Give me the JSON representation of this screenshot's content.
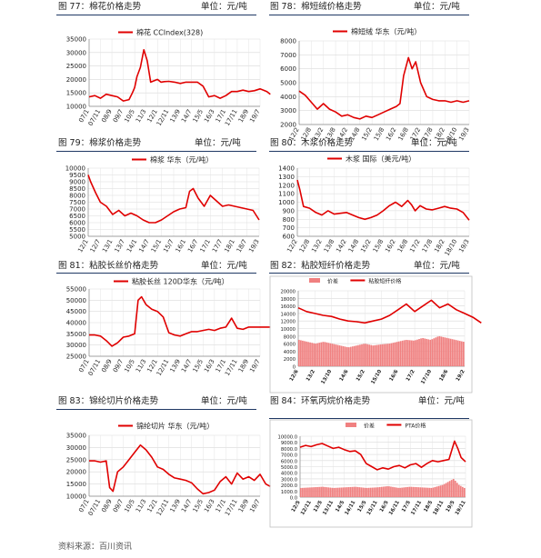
{
  "source_note": "资料来源：百川资讯",
  "colors": {
    "red": "#e00000",
    "bar": "#f08080",
    "rule": "#1f3864",
    "grid": "#d9d9d9"
  },
  "chart_data": [
    {
      "type": "line",
      "figure_title": "图 77：棉花价格走势",
      "unit": "单位：元/吨",
      "legend": [
        "棉花 CCIndex(328)"
      ],
      "ylim": [
        10000,
        35000
      ],
      "yticks": [
        "10000",
        "15000",
        "20000",
        "25000",
        "30000",
        "35000"
      ],
      "xticks": [
        "07/1",
        "07/11",
        "08/9",
        "09/7",
        "10/5",
        "11/3",
        "12/1",
        "12/11",
        "13/9",
        "14/7",
        "15/5",
        "16/3",
        "17/1",
        "17/11",
        "18/9",
        "19/7"
      ],
      "series": [
        {
          "name": "棉花 CCIndex(328)",
          "color": "#e00000",
          "x": [
            0,
            0.5,
            1,
            1.5,
            2,
            2.5,
            3,
            3.5,
            3.8,
            4,
            4.2,
            4.5,
            4.8,
            5.1,
            5.4,
            5.7,
            6,
            6.3,
            6.6,
            7,
            7.5,
            8,
            8.5,
            9,
            9.5,
            10,
            10.5,
            11,
            11.5,
            12,
            12.5,
            13,
            13.5,
            14,
            14.5,
            15,
            15.3,
            15.6,
            15.9
          ],
          "values": [
            13500,
            14000,
            13000,
            14500,
            14000,
            13500,
            12000,
            12500,
            15000,
            17000,
            21000,
            24500,
            31000,
            27000,
            19000,
            19500,
            20000,
            19000,
            19200,
            19300,
            19000,
            18500,
            19000,
            19000,
            19000,
            17500,
            13500,
            14000,
            13000,
            14000,
            15500,
            15500,
            16000,
            15500,
            15800,
            16500,
            16000,
            15500,
            14500
          ]
        }
      ]
    },
    {
      "type": "line",
      "figure_title": "图 78：棉短绒价格走势",
      "unit": "单位：元/吨",
      "legend": [
        "棉短绒 华东（元/吨）"
      ],
      "ylim": [
        2000,
        8000
      ],
      "yticks": [
        "2000",
        "3000",
        "4000",
        "5000",
        "6000",
        "7000",
        "8000"
      ],
      "xticks": [
        "12/2",
        "12/8",
        "13/2",
        "13/8",
        "14/2",
        "14/8",
        "15/2",
        "15/8",
        "16/2",
        "16/8",
        "17/2",
        "17/8",
        "18/2",
        "18/10",
        "19/3"
      ],
      "series": [
        {
          "name": "棉短绒 华东（元/吨）",
          "color": "#e00000",
          "x": [
            0,
            0.5,
            1,
            1.5,
            2,
            2.5,
            3,
            3.5,
            4,
            4.5,
            5,
            5.5,
            6,
            6.5,
            7,
            7.5,
            8,
            8.3,
            8.6,
            9,
            9.3,
            9.6,
            10,
            10.5,
            11,
            11.5,
            12,
            12.5,
            13,
            13.5,
            14
          ],
          "values": [
            4400,
            4100,
            3600,
            3100,
            3500,
            3100,
            2900,
            2600,
            2700,
            2500,
            2400,
            2600,
            2500,
            2700,
            2900,
            3100,
            3300,
            3500,
            5500,
            6800,
            6000,
            6500,
            5000,
            4000,
            3800,
            3700,
            3700,
            3600,
            3700,
            3600,
            3700
          ]
        }
      ]
    },
    {
      "type": "line",
      "figure_title": "图 79：棉浆价格走势",
      "unit": "单位：元/吨",
      "legend": [
        "棉浆 华东（元/吨）"
      ],
      "ylim": [
        5000,
        10000
      ],
      "yticks": [
        "5000",
        "5500",
        "6000",
        "6500",
        "7000",
        "7500",
        "8000",
        "8500",
        "9000",
        "9500",
        "10000"
      ],
      "xticks": [
        "12/1",
        "12/7",
        "13/1",
        "13/7",
        "14/1",
        "14/7",
        "15/1",
        "15/7",
        "16/1",
        "16/7",
        "17/1",
        "17/7",
        "18/1",
        "18/7",
        "19/3"
      ],
      "series": [
        {
          "name": "棉浆 华东（元/吨）",
          "color": "#e00000",
          "x": [
            0,
            0.2,
            0.6,
            1,
            1.5,
            2,
            2.5,
            3,
            3.5,
            4,
            4.5,
            5,
            5.5,
            6,
            6.5,
            7,
            7.5,
            8,
            8.3,
            8.6,
            9,
            9.5,
            10,
            10.5,
            11,
            11.5,
            12,
            12.5,
            13,
            13.5,
            14
          ],
          "values": [
            9500,
            9000,
            8200,
            7500,
            7200,
            6600,
            6900,
            6500,
            6700,
            6500,
            6200,
            6000,
            6000,
            6200,
            6500,
            6800,
            7000,
            7100,
            8300,
            8500,
            7800,
            7200,
            8000,
            7600,
            7200,
            7300,
            7200,
            7100,
            7000,
            6900,
            6200
          ]
        }
      ]
    },
    {
      "type": "line",
      "figure_title": "图 80：木浆价格走势",
      "unit": "单位：元/吨",
      "legend": [
        "木浆 国际（美元/吨）"
      ],
      "ylim": [
        600,
        1400
      ],
      "yticks": [
        "600",
        "700",
        "800",
        "900",
        "1000",
        "1100",
        "1200",
        "1300",
        "1400"
      ],
      "xticks": [
        "12/2",
        "12/8",
        "13/2",
        "13/8",
        "14/2",
        "14/8",
        "15/2",
        "15/8",
        "16/2",
        "16/8",
        "17/2",
        "17/8",
        "18/2",
        "18/10",
        "19/3"
      ],
      "series": [
        {
          "name": "木浆 国际（美元/吨）",
          "color": "#e00000",
          "x": [
            0,
            0.2,
            0.5,
            1,
            1.5,
            2,
            2.5,
            3,
            3.5,
            4,
            4.5,
            5,
            5.5,
            6,
            6.5,
            7,
            7.5,
            8,
            8.5,
            9,
            9.3,
            9.6,
            10,
            10.5,
            11,
            11.5,
            12,
            12.5,
            13,
            13.5,
            14
          ],
          "values": [
            1260,
            1150,
            950,
            930,
            880,
            850,
            900,
            860,
            870,
            880,
            850,
            820,
            800,
            820,
            850,
            900,
            960,
            1000,
            950,
            1020,
            970,
            900,
            960,
            920,
            910,
            930,
            950,
            930,
            920,
            880,
            790
          ]
        }
      ]
    },
    {
      "type": "line",
      "figure_title": "图 81：粘胶长丝价格走势",
      "unit": "单位：元/吨",
      "legend": [
        "粘胶长丝 120D华东（元/吨）"
      ],
      "ylim": [
        25000,
        55000
      ],
      "yticks": [
        "25000",
        "30000",
        "35000",
        "40000",
        "45000",
        "50000",
        "55000"
      ],
      "xticks": [
        "07/1",
        "07/11",
        "08/9",
        "09/7",
        "10/5",
        "11/3",
        "12/1",
        "12/11",
        "13/9",
        "14/7",
        "15/5",
        "16/3",
        "17/1",
        "17/11",
        "18/9",
        "19/7"
      ],
      "series": [
        {
          "name": "粘胶长丝 120D华东（元/吨）",
          "color": "#e00000",
          "x": [
            0,
            0.5,
            1,
            1.5,
            2,
            2.5,
            3,
            3.5,
            4,
            4.3,
            4.6,
            5,
            5.5,
            6,
            6.5,
            7,
            7.5,
            8,
            8.5,
            9,
            9.5,
            10,
            10.5,
            11,
            11.5,
            12,
            12.5,
            13,
            13.5,
            14,
            14.5,
            15,
            15.5,
            15.9
          ],
          "values": [
            34500,
            34500,
            34000,
            32000,
            29500,
            31000,
            33500,
            34000,
            35000,
            50000,
            51500,
            48000,
            46000,
            45000,
            42500,
            35500,
            34500,
            34000,
            35000,
            36000,
            36000,
            36500,
            37000,
            36500,
            37500,
            38000,
            42000,
            37500,
            37000,
            38000,
            38000,
            38000,
            38000,
            38000
          ]
        }
      ]
    },
    {
      "type": "bar",
      "figure_title": "图 82：粘胶短纤价格走势",
      "unit": "单位：元/吨",
      "legend": [
        "价差",
        "粘胶短纤价格"
      ],
      "ylim": [
        0,
        20000
      ],
      "yticks": [
        "0",
        "2000",
        "4000",
        "6000",
        "8000",
        "10000",
        "12000",
        "14000",
        "16000",
        "18000",
        "20000"
      ],
      "xticks": [
        "12/6",
        "13/2",
        "13/10",
        "14/6",
        "15/2",
        "15/10",
        "16/6",
        "17/2",
        "17/10",
        "18/6",
        "19/2"
      ],
      "series": [
        {
          "name": "价差",
          "color": "#f08080",
          "x": [
            0,
            0.5,
            1,
            1.5,
            2,
            2.5,
            3,
            3.5,
            4,
            4.5,
            5,
            5.5,
            6,
            6.5,
            7,
            7.5,
            8,
            8.5,
            9,
            9.5,
            10,
            10.5,
            11
          ],
          "values": [
            7000,
            6500,
            6000,
            6500,
            6000,
            5500,
            5000,
            5500,
            6000,
            5500,
            5800,
            6000,
            6500,
            7000,
            6800,
            7500,
            7000,
            8000,
            7500,
            7000,
            6500,
            6000,
            4800
          ]
        },
        {
          "name": "粘胶短纤价格",
          "color": "#e00000",
          "x": [
            0,
            0.5,
            1,
            1.5,
            2,
            2.5,
            3,
            3.5,
            4,
            4.5,
            5,
            5.5,
            6,
            6.5,
            7,
            7.5,
            8,
            8.5,
            9,
            9.5,
            10,
            10.5,
            11
          ],
          "values": [
            15500,
            14500,
            14000,
            13500,
            13200,
            12500,
            12000,
            11800,
            11500,
            12000,
            12500,
            13500,
            15000,
            16500,
            14500,
            16000,
            17500,
            15500,
            16500,
            15000,
            14000,
            13000,
            11500
          ]
        }
      ]
    },
    {
      "type": "line",
      "figure_title": "图 83：锦纶切片价格走势",
      "unit": "单位：元/吨",
      "legend": [
        "锦纶切片 华东（元/吨）"
      ],
      "ylim": [
        10000,
        35000
      ],
      "yticks": [
        "10000",
        "15000",
        "20000",
        "25000",
        "30000",
        "35000"
      ],
      "xticks": [
        "07/1",
        "07/11",
        "08/9",
        "09/7",
        "10/5",
        "11/3",
        "12/1",
        "12/11",
        "13/9",
        "14/7",
        "15/5",
        "16/3",
        "17/1",
        "17/11",
        "18/9",
        "19/7"
      ],
      "series": [
        {
          "name": "锦纶切片 华东（元/吨）",
          "color": "#e00000",
          "x": [
            0,
            0.5,
            1,
            1.5,
            1.8,
            2.1,
            2.5,
            3,
            3.5,
            4,
            4.5,
            5,
            5.5,
            6,
            6.5,
            7,
            7.5,
            8,
            8.5,
            9,
            9.5,
            10,
            10.5,
            11,
            11.5,
            12,
            12.5,
            13,
            13.5,
            14,
            14.5,
            15,
            15.5,
            15.9
          ],
          "values": [
            24500,
            24500,
            24000,
            24500,
            13500,
            12000,
            20000,
            22000,
            25000,
            28000,
            31000,
            29000,
            26000,
            22000,
            21000,
            19000,
            17500,
            17000,
            16500,
            15500,
            13000,
            11000,
            11500,
            12500,
            16000,
            18000,
            15000,
            19500,
            17000,
            18000,
            16500,
            19000,
            15000,
            14000
          ]
        }
      ]
    },
    {
      "type": "bar",
      "figure_title": "图 84：环氧丙烷价格走势",
      "unit": "单位：元/吨",
      "legend": [
        "价差",
        "PTA价格"
      ],
      "ylim": [
        0,
        10000
      ],
      "yticks": [
        "0.0",
        "1000.0",
        "2000.0",
        "3000.0",
        "4000.0",
        "5000.0",
        "6000.0",
        "7000.0",
        "8000.0",
        "9000.0",
        "10000.0"
      ],
      "xticks": [
        "12/5",
        "12/11",
        "13/5",
        "13/11",
        "14/5",
        "14/11",
        "15/5",
        "15/11",
        "16/5",
        "16/11",
        "17/5",
        "17/11",
        "18/5",
        "18/11",
        "19/5",
        "19/11"
      ],
      "series": [
        {
          "name": "价差",
          "color": "#f08080",
          "x": [
            0,
            1,
            2,
            3,
            4,
            5,
            6,
            7,
            8,
            9,
            10,
            11,
            12,
            13,
            14,
            14.5,
            15
          ],
          "values": [
            1500,
            1600,
            1700,
            1500,
            1600,
            1700,
            1500,
            1600,
            1800,
            1500,
            1700,
            1600,
            1500,
            2000,
            3000,
            2000,
            1500
          ]
        },
        {
          "name": "PTA价格",
          "color": "#e00000",
          "x": [
            0,
            0.5,
            1,
            1.5,
            2,
            2.5,
            3,
            3.5,
            4,
            4.5,
            5,
            5.5,
            6,
            6.5,
            7,
            7.5,
            8,
            8.5,
            9,
            9.5,
            10,
            10.5,
            11,
            11.5,
            12,
            12.5,
            13,
            13.5,
            14,
            14.3,
            14.6,
            15
          ],
          "values": [
            8200,
            8500,
            8300,
            8600,
            8800,
            8400,
            8000,
            8200,
            7800,
            7500,
            7600,
            7000,
            5500,
            5000,
            4500,
            4800,
            4600,
            5000,
            5200,
            4800,
            5300,
            5500,
            4900,
            5500,
            6000,
            5800,
            6000,
            6200,
            9200,
            8000,
            6500,
            5800
          ]
        }
      ]
    }
  ]
}
